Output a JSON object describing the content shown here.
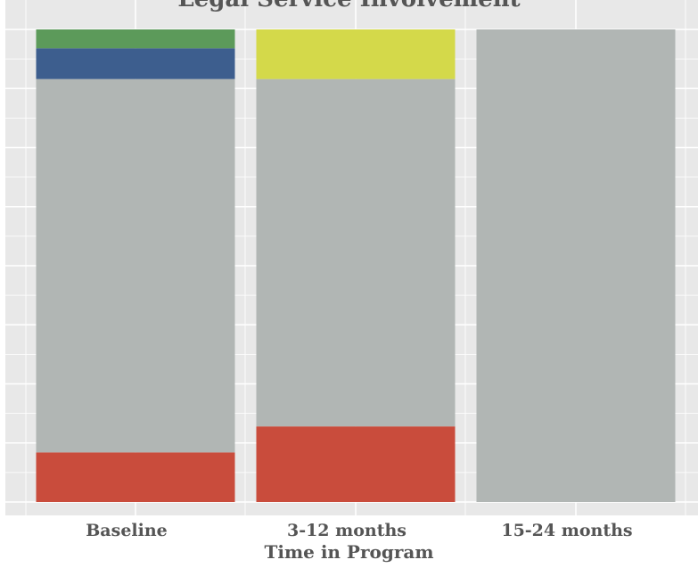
{
  "chart_data": {
    "type": "bar",
    "stacked": true,
    "normalized": true,
    "title": "Legal Service Involvement",
    "xlabel": "Time in Program",
    "ylabel": "",
    "ylim": [
      0,
      1
    ],
    "grid": true,
    "legend": "none",
    "categories": [
      "Baseline",
      "3-12 months",
      "15-24 months"
    ],
    "series": [
      {
        "color": "#c94c3c",
        "values": [
          0.105,
          0.16,
          0.0
        ]
      },
      {
        "color": "#b1b6b4",
        "values": [
          0.79,
          0.735,
          1.0
        ]
      },
      {
        "color": "#d4d94a",
        "values": [
          0.0,
          0.105,
          0.0
        ]
      },
      {
        "color": "#3d5e8e",
        "values": [
          0.065,
          0.0,
          0.0
        ]
      },
      {
        "color": "#5c9a5a",
        "values": [
          0.04,
          0.0,
          0.0
        ]
      }
    ]
  }
}
